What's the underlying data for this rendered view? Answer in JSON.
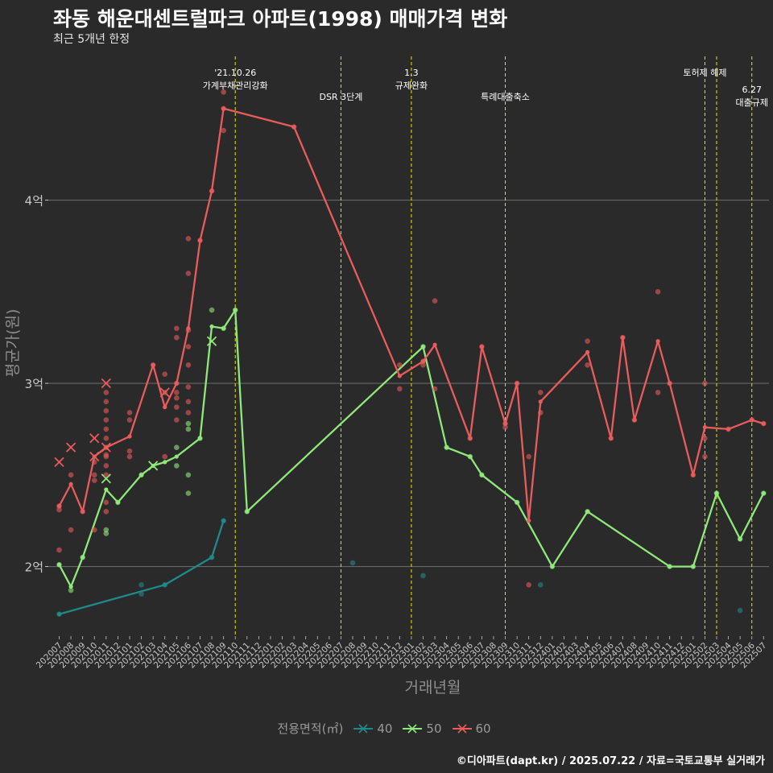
{
  "title": "좌동 해운대센트럴파크 아파트(1998) 매매가격 변화",
  "subtitle": "최근 5개년 한정",
  "caption": "©디아파트(dapt.kr) / 2025.07.22 / 자료=국토교통부 실거래가",
  "legend": {
    "title": "전용면적(㎡)"
  },
  "colors": {
    "background": "#2b2a2a",
    "grid": "#666666",
    "axis_text": "#c8c8c8",
    "axis_title": "#8e8e8e",
    "event_line": "#e6e600",
    "event_text": "#ffffff",
    "series_40": "#1f8a8a",
    "series_50": "#8ee87a",
    "series_60": "#e85c5c"
  },
  "chart_data": {
    "type": "line",
    "xlabel": "거래년월",
    "ylabel": "평균가(원)",
    "categories": [
      "202007",
      "202008",
      "202009",
      "202010",
      "202011",
      "202012",
      "202101",
      "202102",
      "202103",
      "202104",
      "202105",
      "202106",
      "202107",
      "202108",
      "202109",
      "202110",
      "202111",
      "202112",
      "202201",
      "202202",
      "202203",
      "202204",
      "202205",
      "202206",
      "202207",
      "202208",
      "202209",
      "202210",
      "202211",
      "202212",
      "202301",
      "202302",
      "202303",
      "202304",
      "202305",
      "202306",
      "202307",
      "202308",
      "202309",
      "202310",
      "202311",
      "202312",
      "202401",
      "202402",
      "202403",
      "202404",
      "202405",
      "202406",
      "202407",
      "202408",
      "202409",
      "202410",
      "202411",
      "202412",
      "202501",
      "202502",
      "202503",
      "202504",
      "202505",
      "202506",
      "202507"
    ],
    "y_ticks": [
      {
        "value": 2.0,
        "label": "2억"
      },
      {
        "value": 3.0,
        "label": "3억"
      },
      {
        "value": 4.0,
        "label": "4억"
      }
    ],
    "ylim": [
      1.62,
      4.82
    ],
    "y_unit": "억원",
    "grid": true,
    "legend_position": "bottom",
    "events": [
      {
        "month": "202110",
        "label": "'21.10.26\n가계부채관리강화",
        "row": 1
      },
      {
        "month": "202207",
        "label": "DSR 3단계",
        "row": 2
      },
      {
        "month": "202301",
        "label": "1.3\n규제완화",
        "row": 1
      },
      {
        "month": "202309",
        "label": "특례대출축소",
        "row": 2
      },
      {
        "month": "202502",
        "label": "토허제 해제",
        "row": 1
      },
      {
        "month": "202503",
        "label": "",
        "row": 0
      },
      {
        "month": "202506",
        "label": "6.27\n대출규제",
        "row": 3
      }
    ],
    "series": [
      {
        "name": "40",
        "color_key": "series_40",
        "line": [
          [
            "202007",
            1.74
          ],
          [
            "202104",
            1.9
          ],
          [
            "202108",
            2.05
          ],
          [
            "202109",
            2.25
          ]
        ],
        "points": [
          [
            "202007",
            1.74
          ],
          [
            "202102",
            1.9
          ],
          [
            "202102",
            1.85
          ],
          [
            "202104",
            1.9
          ],
          [
            "202108",
            2.05
          ],
          [
            "202109",
            2.25
          ],
          [
            "202208",
            2.02
          ],
          [
            "202302",
            1.95
          ],
          [
            "202312",
            1.9
          ],
          [
            "202505",
            1.76
          ]
        ],
        "crosses": []
      },
      {
        "name": "50",
        "color_key": "series_50",
        "line": [
          [
            "202007",
            2.01
          ],
          [
            "202008",
            1.89
          ],
          [
            "202009",
            2.05
          ],
          [
            "202011",
            2.42
          ],
          [
            "202012",
            2.35
          ],
          [
            "202102",
            2.5
          ],
          [
            "202103",
            2.55
          ],
          [
            "202104",
            2.57
          ],
          [
            "202105",
            2.6
          ],
          [
            "202107",
            2.7
          ],
          [
            "202108",
            3.31
          ],
          [
            "202109",
            3.3
          ],
          [
            "202110",
            3.4
          ],
          [
            "202111",
            2.3
          ],
          [
            "202302",
            3.2
          ],
          [
            "202304",
            2.65
          ],
          [
            "202306",
            2.6
          ],
          [
            "202307",
            2.5
          ],
          [
            "202310",
            2.35
          ],
          [
            "202401",
            2.0
          ],
          [
            "202404",
            2.3
          ],
          [
            "202411",
            2.0
          ],
          [
            "202501",
            2.0
          ],
          [
            "202503",
            2.4
          ],
          [
            "202505",
            2.15
          ],
          [
            "202507",
            2.4
          ]
        ],
        "points": [
          [
            "202007",
            2.01
          ],
          [
            "202008",
            1.87
          ],
          [
            "202009",
            2.05
          ],
          [
            "202011",
            2.2
          ],
          [
            "202011",
            2.18
          ],
          [
            "202012",
            2.35
          ],
          [
            "202102",
            2.5
          ],
          [
            "202105",
            2.55
          ],
          [
            "202105",
            2.65
          ],
          [
            "202106",
            2.4
          ],
          [
            "202106",
            2.5
          ],
          [
            "202106",
            2.75
          ],
          [
            "202106",
            2.78
          ],
          [
            "202107",
            2.7
          ],
          [
            "202108",
            3.4
          ],
          [
            "202109",
            3.3
          ],
          [
            "202110",
            3.4
          ],
          [
            "202111",
            2.3
          ],
          [
            "202302",
            3.2
          ],
          [
            "202304",
            2.65
          ],
          [
            "202306",
            2.6
          ],
          [
            "202307",
            2.5
          ],
          [
            "202310",
            2.35
          ],
          [
            "202401",
            2.0
          ],
          [
            "202404",
            2.3
          ],
          [
            "202411",
            2.0
          ],
          [
            "202501",
            2.0
          ],
          [
            "202503",
            2.4
          ],
          [
            "202505",
            2.15
          ],
          [
            "202507",
            2.4
          ]
        ],
        "crosses": [
          [
            "202011",
            2.48
          ],
          [
            "202103",
            2.55
          ],
          [
            "202108",
            3.23
          ]
        ]
      },
      {
        "name": "60",
        "color_key": "series_60",
        "line": [
          [
            "202007",
            2.33
          ],
          [
            "202008",
            2.45
          ],
          [
            "202009",
            2.3
          ],
          [
            "202010",
            2.6
          ],
          [
            "202011",
            2.65
          ],
          [
            "202101",
            2.71
          ],
          [
            "202103",
            3.1
          ],
          [
            "202104",
            2.87
          ],
          [
            "202105",
            3.0
          ],
          [
            "202106",
            3.3
          ],
          [
            "202107",
            3.78
          ],
          [
            "202108",
            4.05
          ],
          [
            "202109",
            4.5
          ],
          [
            "202203",
            4.4
          ],
          [
            "202212",
            3.04
          ],
          [
            "202302",
            3.12
          ],
          [
            "202303",
            3.21
          ],
          [
            "202306",
            2.7
          ],
          [
            "202307",
            3.2
          ],
          [
            "202309",
            2.78
          ],
          [
            "202310",
            3.0
          ],
          [
            "202311",
            2.25
          ],
          [
            "202312",
            2.9
          ],
          [
            "202404",
            3.17
          ],
          [
            "202406",
            2.7
          ],
          [
            "202407",
            3.25
          ],
          [
            "202408",
            2.8
          ],
          [
            "202410",
            3.23
          ],
          [
            "202411",
            3.0
          ],
          [
            "202501",
            2.5
          ],
          [
            "202502",
            2.76
          ],
          [
            "202504",
            2.75
          ],
          [
            "202506",
            2.8
          ],
          [
            "202507",
            2.78
          ]
        ],
        "points": [
          [
            "202007",
            2.33
          ],
          [
            "202007",
            2.31
          ],
          [
            "202007",
            2.09
          ],
          [
            "202008",
            2.5
          ],
          [
            "202008",
            2.2
          ],
          [
            "202009",
            2.3
          ],
          [
            "202010",
            2.57
          ],
          [
            "202010",
            2.5
          ],
          [
            "202010",
            2.47
          ],
          [
            "202010",
            2.2
          ],
          [
            "202011",
            2.3
          ],
          [
            "202011",
            2.35
          ],
          [
            "202011",
            2.5
          ],
          [
            "202011",
            2.55
          ],
          [
            "202011",
            2.6
          ],
          [
            "202011",
            2.65
          ],
          [
            "202011",
            2.7
          ],
          [
            "202011",
            2.75
          ],
          [
            "202011",
            2.8
          ],
          [
            "202011",
            2.85
          ],
          [
            "202011",
            2.9
          ],
          [
            "202011",
            2.95
          ],
          [
            "202011",
            2.61
          ],
          [
            "202101",
            2.6
          ],
          [
            "202101",
            2.63
          ],
          [
            "202101",
            2.8
          ],
          [
            "202101",
            2.84
          ],
          [
            "202103",
            3.1
          ],
          [
            "202104",
            2.6
          ],
          [
            "202104",
            2.95
          ],
          [
            "202104",
            3.05
          ],
          [
            "202105",
            2.8
          ],
          [
            "202105",
            2.87
          ],
          [
            "202105",
            2.92
          ],
          [
            "202105",
            2.95
          ],
          [
            "202105",
            3.0
          ],
          [
            "202105",
            3.25
          ],
          [
            "202105",
            3.3
          ],
          [
            "202106",
            2.84
          ],
          [
            "202106",
            2.9
          ],
          [
            "202106",
            2.98
          ],
          [
            "202106",
            3.1
          ],
          [
            "202106",
            3.2
          ],
          [
            "202106",
            3.29
          ],
          [
            "202106",
            3.6
          ],
          [
            "202106",
            3.79
          ],
          [
            "202107",
            3.78
          ],
          [
            "202108",
            4.05
          ],
          [
            "202109",
            4.38
          ],
          [
            "202109",
            4.5
          ],
          [
            "202109",
            4.59
          ],
          [
            "202203",
            4.4
          ],
          [
            "202212",
            3.1
          ],
          [
            "202212",
            2.97
          ],
          [
            "202302",
            3.1
          ],
          [
            "202302",
            3.12
          ],
          [
            "202303",
            3.45
          ],
          [
            "202303",
            2.97
          ],
          [
            "202306",
            2.7
          ],
          [
            "202307",
            3.2
          ],
          [
            "202309",
            2.78
          ],
          [
            "202309",
            2.76
          ],
          [
            "202310",
            3.0
          ],
          [
            "202311",
            2.6
          ],
          [
            "202311",
            1.9
          ],
          [
            "202312",
            2.95
          ],
          [
            "202312",
            2.84
          ],
          [
            "202404",
            3.1
          ],
          [
            "202404",
            3.23
          ],
          [
            "202406",
            2.7
          ],
          [
            "202407",
            3.25
          ],
          [
            "202408",
            2.8
          ],
          [
            "202410",
            2.95
          ],
          [
            "202410",
            3.5
          ],
          [
            "202411",
            3.0
          ],
          [
            "202501",
            2.5
          ],
          [
            "202502",
            2.7
          ],
          [
            "202502",
            2.6
          ],
          [
            "202502",
            3.0
          ],
          [
            "202504",
            2.75
          ],
          [
            "202506",
            2.8
          ],
          [
            "202507",
            2.78
          ]
        ],
        "crosses": [
          [
            "202007",
            2.57
          ],
          [
            "202008",
            2.65
          ],
          [
            "202010",
            2.7
          ],
          [
            "202010",
            2.6
          ],
          [
            "202011",
            3.0
          ],
          [
            "202011",
            2.65
          ],
          [
            "202104",
            2.95
          ]
        ]
      }
    ]
  }
}
